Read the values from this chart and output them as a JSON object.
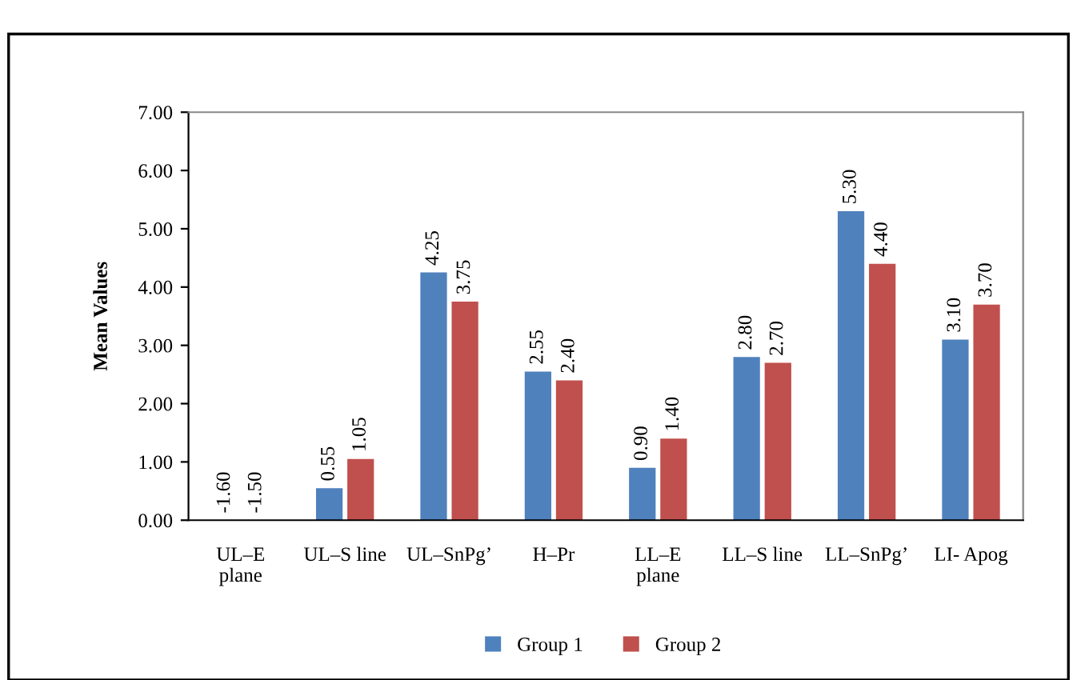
{
  "chart_data": {
    "type": "bar",
    "ylabel": "Mean Values",
    "categories": [
      "UL–E\nplane",
      "UL–S line",
      "UL–SnPg’",
      "H–Pr",
      "LL–E\nplane",
      "LL–S line",
      "LL–SnPg’",
      "LI- Apog"
    ],
    "series": [
      {
        "name": "Group 1",
        "color": "#4f81bd",
        "values": [
          null,
          0.55,
          4.25,
          2.55,
          0.9,
          2.8,
          5.3,
          3.1
        ],
        "value_labels": [
          "-1.60",
          "0.55",
          "4.25",
          "2.55",
          "0.90",
          "2.80",
          "5.30",
          "3.10"
        ]
      },
      {
        "name": "Group 2",
        "color": "#c0504d",
        "values": [
          null,
          1.05,
          3.75,
          2.4,
          1.4,
          2.7,
          4.4,
          3.7
        ],
        "value_labels": [
          "-1.50",
          "1.05",
          "3.75",
          "2.40",
          "1.40",
          "2.70",
          "4.40",
          "3.70"
        ]
      }
    ],
    "ylim": [
      0,
      7
    ],
    "yticks": [
      {
        "value": 0,
        "label": "0.00"
      },
      {
        "value": 1,
        "label": "1.00"
      },
      {
        "value": 2,
        "label": "2.00"
      },
      {
        "value": 3,
        "label": "3.00"
      },
      {
        "value": 4,
        "label": "4.00"
      },
      {
        "value": 5,
        "label": "5.00"
      },
      {
        "value": 6,
        "label": "6.00"
      },
      {
        "value": 7,
        "label": "7.00"
      }
    ],
    "grid": false,
    "legend": "bottom"
  }
}
